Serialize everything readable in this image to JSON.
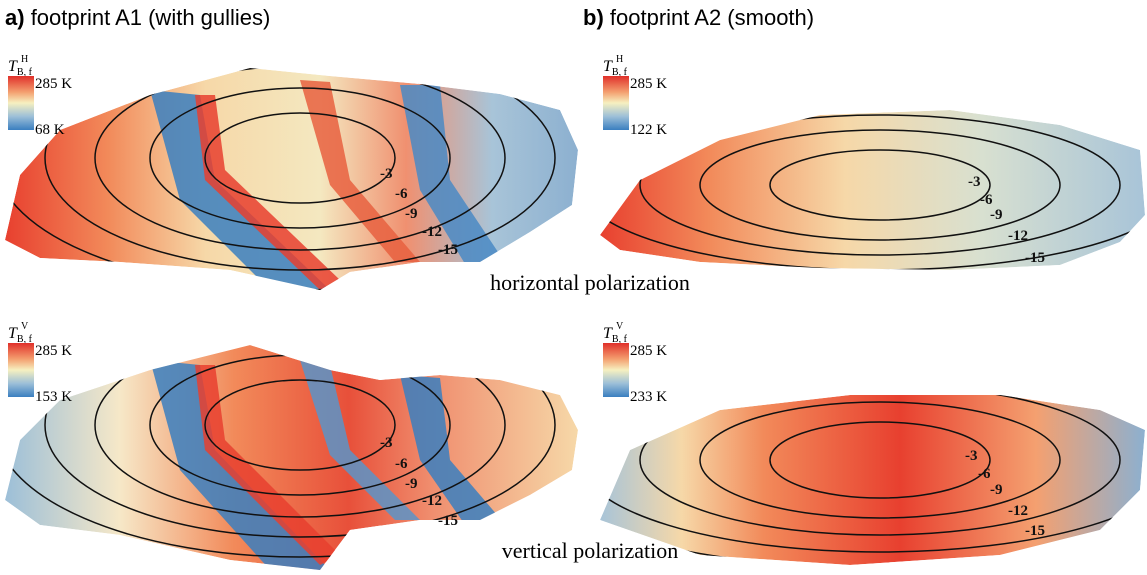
{
  "panels": [
    {
      "label": "a)",
      "title": "footprint A1 (with gullies)"
    },
    {
      "label": "b)",
      "title": "footprint A2 (smooth)"
    }
  ],
  "rows": [
    {
      "polarization_label": "horizontal polarization",
      "maps": [
        {
          "symbol": {
            "base": "T",
            "sub": "B, f",
            "sup": "H"
          },
          "max": "285 K",
          "min": "68 K",
          "contours": [
            "-3",
            "-6",
            "-9",
            "-12",
            "-15"
          ]
        },
        {
          "symbol": {
            "base": "T",
            "sub": "B, f",
            "sup": "H"
          },
          "max": "285 K",
          "min": "122 K",
          "contours": [
            "-3",
            "-6",
            "-9",
            "-12",
            "-15"
          ]
        }
      ]
    },
    {
      "polarization_label": "vertical polarization",
      "maps": [
        {
          "symbol": {
            "base": "T",
            "sub": "B, f",
            "sup": "V"
          },
          "max": "285 K",
          "min": "153 K",
          "contours": [
            "-3",
            "-6",
            "-9",
            "-12",
            "-15"
          ]
        },
        {
          "symbol": {
            "base": "T",
            "sub": "B, f",
            "sup": "V"
          },
          "max": "285 K",
          "min": "233 K",
          "contours": [
            "-3",
            "-6",
            "-9",
            "-12",
            "-15"
          ]
        }
      ]
    }
  ]
}
